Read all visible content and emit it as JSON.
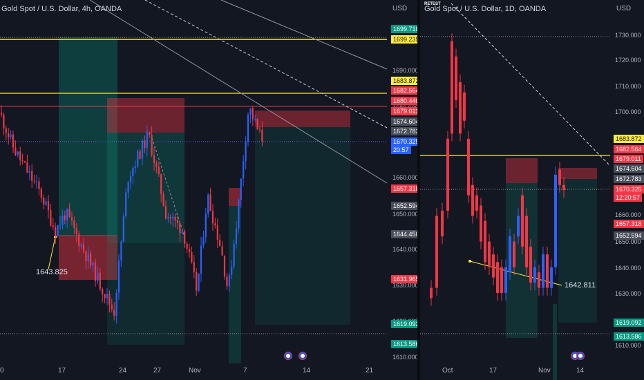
{
  "left_chart": {
    "title": "Gold Spot / U.S. Dollar, 4h, OANDA",
    "currency": "USD",
    "price_ticks": [
      "1690.000",
      "1680.000",
      "1670.000",
      "1660.000",
      "1650.000",
      "1640.000",
      "1630.000",
      "1620.000",
      "1610.000"
    ],
    "x_ticks": [
      "0",
      "17",
      "24",
      "27",
      "Nov",
      "7",
      "14",
      "21"
    ],
    "axis_labels": [
      {
        "text": "1699.718",
        "bg": "#089981",
        "fg": "#ffffff"
      },
      {
        "text": "1699.235",
        "bg": "#ffeb3b",
        "fg": "#131722"
      },
      {
        "text": "1683.872",
        "bg": "#ffeb3b",
        "fg": "#131722"
      },
      {
        "text": "1682.564",
        "bg": "#f23645",
        "fg": "#ffffff"
      },
      {
        "text": "1680.440",
        "bg": "#f23645",
        "fg": "#ffffff"
      },
      {
        "text": "1679.011",
        "bg": "#f23645",
        "fg": "#ffffff"
      },
      {
        "text": "1674.604",
        "bg": "#4a4e59",
        "fg": "#ffffff"
      },
      {
        "text": "1672.783",
        "bg": "#4a4e59",
        "fg": "#ffffff"
      },
      {
        "text": "1670.325",
        "bg": "#2962ff",
        "fg": "#ffffff"
      },
      {
        "text": "20:57",
        "bg": "#2962ff",
        "fg": "#ffffff"
      },
      {
        "text": "1657.318",
        "bg": "#f23645",
        "fg": "#ffffff"
      },
      {
        "text": "1652.594",
        "bg": "#4a4e59",
        "fg": "#ffffff"
      },
      {
        "text": "1644.450",
        "bg": "#4a4e59",
        "fg": "#ffffff"
      },
      {
        "text": "1631.965",
        "bg": "#f23645",
        "fg": "#ffffff"
      },
      {
        "text": "1619.092",
        "bg": "#089981",
        "fg": "#ffffff"
      },
      {
        "text": "1613.586",
        "bg": "#089981",
        "fg": "#ffffff"
      }
    ],
    "annotation": "1643.825"
  },
  "right_chart": {
    "title": "Gold Spot / U.S. Dollar, 1D, OANDA",
    "overlay_label": "RETEST",
    "currency": "USD",
    "price_ticks": [
      "1730.000",
      "1720.000",
      "1710.000",
      "1700.000",
      "1660.000",
      "1650.000",
      "1640.000",
      "1630.000",
      "1610.000"
    ],
    "x_ticks": [
      "Oct",
      "17",
      "Nov",
      "14"
    ],
    "axis_labels": [
      {
        "text": "1683.872",
        "bg": "#ffeb3b",
        "fg": "#131722"
      },
      {
        "text": "1682.564",
        "bg": "#f23645",
        "fg": "#ffffff"
      },
      {
        "text": "1679.011",
        "bg": "#f23645",
        "fg": "#ffffff"
      },
      {
        "text": "1674.604",
        "bg": "#4a4e59",
        "fg": "#ffffff"
      },
      {
        "text": "1672.783",
        "bg": "#4a4e59",
        "fg": "#ffffff"
      },
      {
        "text": "1670.325",
        "bg": "#f23645",
        "fg": "#ffffff"
      },
      {
        "text": "12:20:57",
        "bg": "#f23645",
        "fg": "#ffffff"
      },
      {
        "text": "1657.318",
        "bg": "#f23645",
        "fg": "#ffffff"
      },
      {
        "text": "1652.594",
        "bg": "#4a4e59",
        "fg": "#ffffff"
      },
      {
        "text": "1619.092",
        "bg": "#089981",
        "fg": "#ffffff"
      },
      {
        "text": "1613.586",
        "bg": "#089981",
        "fg": "#ffffff"
      }
    ],
    "annotation": "1642.811"
  },
  "colors": {
    "up": "#2962ff",
    "down": "#f23645",
    "accent_yellow": "#ffeb3b",
    "background": "#131722"
  }
}
